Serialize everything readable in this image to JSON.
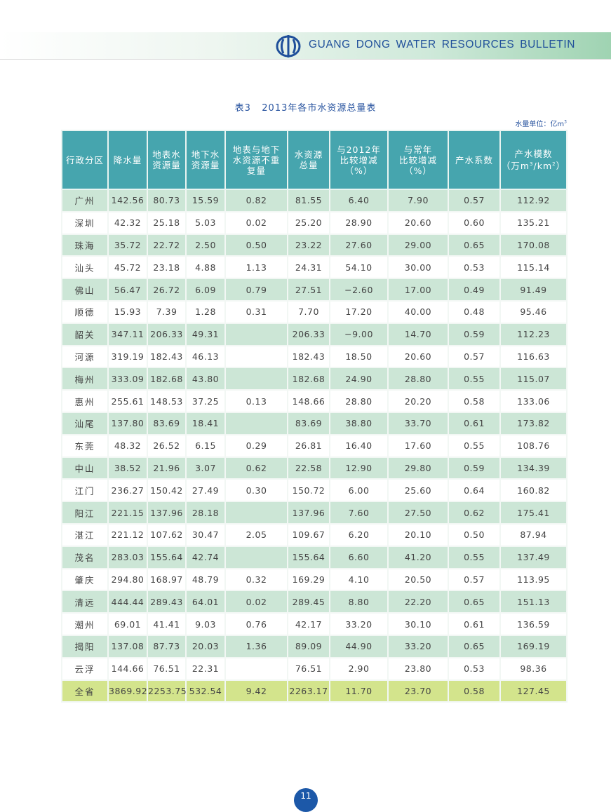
{
  "header": {
    "bulletin": "GUANG DONG WATER RESOURCES BULLETIN",
    "logo_icon": "water-logo-icon",
    "brand_color": "#1f4f9a"
  },
  "title": "表3   2013年各市水资源总量表",
  "unit": "水量单位：亿m",
  "unit_sup": "3",
  "columns": [
    {
      "label": "行政分区"
    },
    {
      "label": "降水量"
    },
    {
      "label": "地表水资源量"
    },
    {
      "label": "地下水资源量"
    },
    {
      "label": "地表与地下水资源不重复量"
    },
    {
      "label": "水资源总量"
    },
    {
      "label": "与2012年比较增减（%）"
    },
    {
      "label": "与常年比较增减（%）"
    },
    {
      "label": "产水系数"
    },
    {
      "label": "产水模数（万m³/km²）"
    }
  ],
  "header_lines": [
    [
      "行政分区"
    ],
    [
      "降水量"
    ],
    [
      "地表水",
      "资源量"
    ],
    [
      "地下水",
      "资源量"
    ],
    [
      "地表与地下",
      "水资源不重",
      "复量"
    ],
    [
      "水资源",
      "总量"
    ],
    [
      "与2012年",
      "比较增减",
      "（%）"
    ],
    [
      "与常年",
      "比较增减",
      "（%）"
    ],
    [
      "产水系数"
    ],
    [
      "产水模数",
      "（万m³/km²）"
    ]
  ],
  "rows": [
    [
      "广州",
      "142.56",
      "80.73",
      "15.59",
      "0.82",
      "81.55",
      "6.40",
      "7.90",
      "0.57",
      "112.92"
    ],
    [
      "深圳",
      "42.32",
      "25.18",
      "5.03",
      "0.02",
      "25.20",
      "28.90",
      "20.60",
      "0.60",
      "135.21"
    ],
    [
      "珠海",
      "35.72",
      "22.72",
      "2.50",
      "0.50",
      "23.22",
      "27.60",
      "29.00",
      "0.65",
      "170.08"
    ],
    [
      "汕头",
      "45.72",
      "23.18",
      "4.88",
      "1.13",
      "24.31",
      "54.10",
      "30.00",
      "0.53",
      "115.14"
    ],
    [
      "佛山",
      "56.47",
      "26.72",
      "6.09",
      "0.79",
      "27.51",
      "−2.60",
      "17.00",
      "0.49",
      "91.49"
    ],
    [
      "顺德",
      "15.93",
      "7.39",
      "1.28",
      "0.31",
      "7.70",
      "17.20",
      "40.00",
      "0.48",
      "95.46"
    ],
    [
      "韶关",
      "347.11",
      "206.33",
      "49.31",
      "",
      "206.33",
      "−9.00",
      "14.70",
      "0.59",
      "112.23"
    ],
    [
      "河源",
      "319.19",
      "182.43",
      "46.13",
      "",
      "182.43",
      "18.50",
      "20.60",
      "0.57",
      "116.63"
    ],
    [
      "梅州",
      "333.09",
      "182.68",
      "43.80",
      "",
      "182.68",
      "24.90",
      "28.80",
      "0.55",
      "115.07"
    ],
    [
      "惠州",
      "255.61",
      "148.53",
      "37.25",
      "0.13",
      "148.66",
      "28.80",
      "20.20",
      "0.58",
      "133.06"
    ],
    [
      "汕尾",
      "137.80",
      "83.69",
      "18.41",
      "",
      "83.69",
      "38.80",
      "33.70",
      "0.61",
      "173.82"
    ],
    [
      "东莞",
      "48.32",
      "26.52",
      "6.15",
      "0.29",
      "26.81",
      "16.40",
      "17.60",
      "0.55",
      "108.76"
    ],
    [
      "中山",
      "38.52",
      "21.96",
      "3.07",
      "0.62",
      "22.58",
      "12.90",
      "29.80",
      "0.59",
      "134.39"
    ],
    [
      "江门",
      "236.27",
      "150.42",
      "27.49",
      "0.30",
      "150.72",
      "6.00",
      "25.60",
      "0.64",
      "160.82"
    ],
    [
      "阳江",
      "221.15",
      "137.96",
      "28.18",
      "",
      "137.96",
      "7.60",
      "27.50",
      "0.62",
      "175.41"
    ],
    [
      "湛江",
      "221.12",
      "107.62",
      "30.47",
      "2.05",
      "109.67",
      "6.20",
      "20.10",
      "0.50",
      "87.94"
    ],
    [
      "茂名",
      "283.03",
      "155.64",
      "42.74",
      "",
      "155.64",
      "6.60",
      "41.20",
      "0.55",
      "137.49"
    ],
    [
      "肇庆",
      "294.80",
      "168.97",
      "48.79",
      "0.32",
      "169.29",
      "4.10",
      "20.50",
      "0.57",
      "113.95"
    ],
    [
      "清远",
      "444.44",
      "289.43",
      "64.01",
      "0.02",
      "289.45",
      "8.80",
      "22.20",
      "0.65",
      "151.13"
    ],
    [
      "潮州",
      "69.01",
      "41.41",
      "9.03",
      "0.76",
      "42.17",
      "33.20",
      "30.10",
      "0.61",
      "136.59"
    ],
    [
      "揭阳",
      "137.08",
      "87.73",
      "20.03",
      "1.36",
      "89.09",
      "44.90",
      "33.20",
      "0.65",
      "169.19"
    ],
    [
      "云浮",
      "144.66",
      "76.51",
      "22.31",
      "",
      "76.51",
      "2.90",
      "23.80",
      "0.53",
      "98.36"
    ]
  ],
  "total": [
    "全省",
    "3869.92",
    "2253.75",
    "532.54",
    "9.42",
    "2263.17",
    "11.70",
    "23.70",
    "0.58",
    "127.45"
  ],
  "colors": {
    "header_bg": "#46a5ae",
    "row_green": "#cce6d6",
    "total_bg": "#d3e48c",
    "border": "#2e9a62"
  },
  "page_number": "11"
}
